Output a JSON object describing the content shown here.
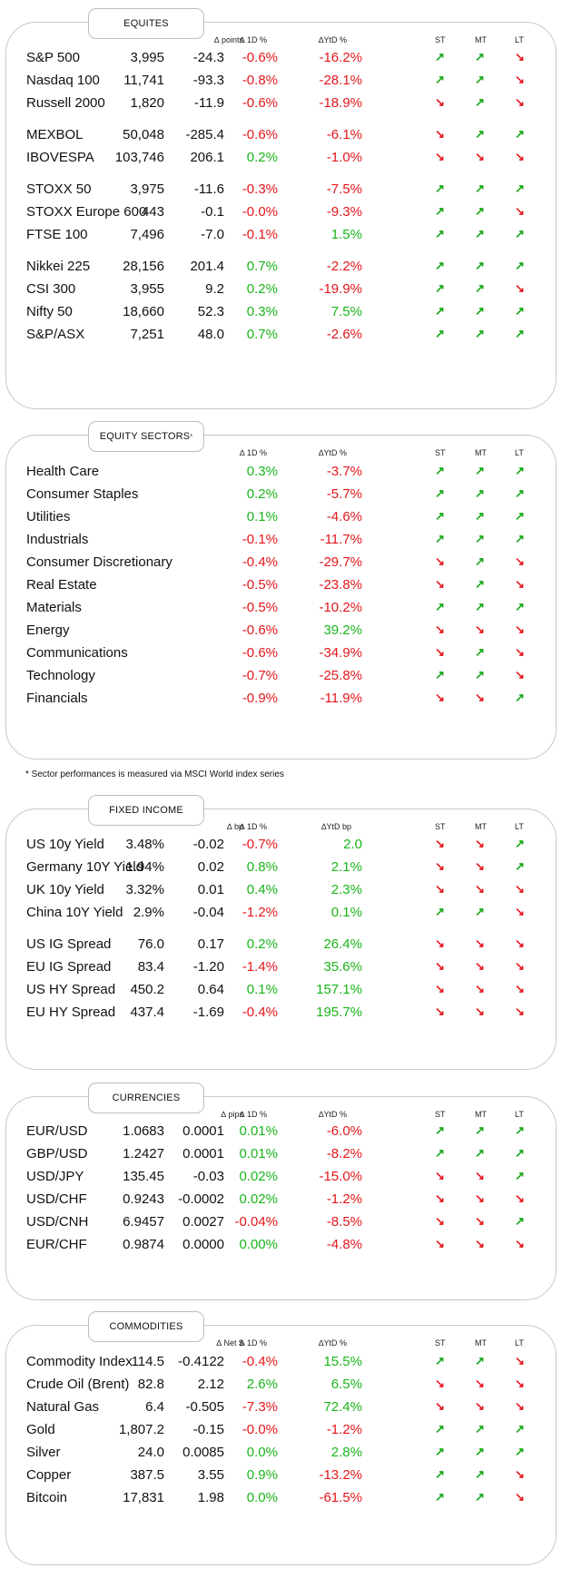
{
  "colors": {
    "positive": "#1ab51a",
    "negative": "#e3171b"
  },
  "icons": {
    "up": "↗",
    "down": "↘"
  },
  "equities": {
    "title": "EQUITES",
    "headers": {
      "c1": "∆ points",
      "c2": "∆ 1D %",
      "c3": "∆YtD %",
      "st": "ST",
      "mt": "MT",
      "lt": "LT"
    },
    "rows": [
      {
        "name": "S&P 500",
        "value": "3,995",
        "change": "-24.3",
        "d1": "-0.6%",
        "ytd": "-16.2%",
        "st": "up",
        "mt": "up",
        "lt": "down"
      },
      {
        "name": "Nasdaq 100",
        "value": "11,741",
        "change": "-93.3",
        "d1": "-0.8%",
        "ytd": "-28.1%",
        "st": "up",
        "mt": "up",
        "lt": "down"
      },
      {
        "name": "Russell 2000",
        "value": "1,820",
        "change": "-11.9",
        "d1": "-0.6%",
        "ytd": "-18.9%",
        "st": "down",
        "mt": "up",
        "lt": "down"
      },
      {
        "name": "MEXBOL",
        "value": "50,048",
        "change": "-285.4",
        "d1": "-0.6%",
        "ytd": "-6.1%",
        "st": "down",
        "mt": "up",
        "lt": "up"
      },
      {
        "name": "IBOVESPA",
        "value": "103,746",
        "change": "206.1",
        "d1": "0.2%",
        "ytd": "-1.0%",
        "st": "down",
        "mt": "down",
        "lt": "down"
      },
      {
        "name": "STOXX 50",
        "value": "3,975",
        "change": "-11.6",
        "d1": "-0.3%",
        "ytd": "-7.5%",
        "st": "up",
        "mt": "up",
        "lt": "up"
      },
      {
        "name": "STOXX Europe 600",
        "value": "443",
        "change": "-0.1",
        "d1": "-0.0%",
        "ytd": "-9.3%",
        "st": "up",
        "mt": "up",
        "lt": "down"
      },
      {
        "name": "FTSE 100",
        "value": "7,496",
        "change": "-7.0",
        "d1": "-0.1%",
        "ytd": "1.5%",
        "st": "up",
        "mt": "up",
        "lt": "up"
      },
      {
        "name": "Nikkei 225",
        "value": "28,156",
        "change": "201.4",
        "d1": "0.7%",
        "ytd": "-2.2%",
        "st": "up",
        "mt": "up",
        "lt": "up"
      },
      {
        "name": "CSI 300",
        "value": "3,955",
        "change": "9.2",
        "d1": "0.2%",
        "ytd": "-19.9%",
        "st": "up",
        "mt": "up",
        "lt": "down"
      },
      {
        "name": "Nifty  50",
        "value": "18,660",
        "change": "52.3",
        "d1": "0.3%",
        "ytd": "7.5%",
        "st": "up",
        "mt": "up",
        "lt": "up"
      },
      {
        "name": "S&P/ASX",
        "value": "7,251",
        "change": "48.0",
        "d1": "0.7%",
        "ytd": "-2.6%",
        "st": "up",
        "mt": "up",
        "lt": "up"
      }
    ]
  },
  "sectors": {
    "title": "EQUITY SECTORS",
    "title_sup": "*",
    "headers": {
      "c2": "∆ 1D %",
      "c3": "∆YtD %",
      "st": "ST",
      "mt": "MT",
      "lt": "LT"
    },
    "rows": [
      {
        "name": "Health Care",
        "d1": "0.3%",
        "ytd": "-3.7%",
        "st": "up",
        "mt": "up",
        "lt": "up"
      },
      {
        "name": "Consumer Staples",
        "d1": "0.2%",
        "ytd": "-5.7%",
        "st": "up",
        "mt": "up",
        "lt": "up"
      },
      {
        "name": "Utilities",
        "d1": "0.1%",
        "ytd": "-4.6%",
        "st": "up",
        "mt": "up",
        "lt": "up"
      },
      {
        "name": "Industrials",
        "d1": "-0.1%",
        "ytd": "-11.7%",
        "st": "up",
        "mt": "up",
        "lt": "up"
      },
      {
        "name": "Consumer Discretionary",
        "d1": "-0.4%",
        "ytd": "-29.7%",
        "st": "down",
        "mt": "up",
        "lt": "down"
      },
      {
        "name": "Real Estate",
        "d1": "-0.5%",
        "ytd": "-23.8%",
        "st": "down",
        "mt": "up",
        "lt": "down"
      },
      {
        "name": "Materials",
        "d1": "-0.5%",
        "ytd": "-10.2%",
        "st": "up",
        "mt": "up",
        "lt": "up"
      },
      {
        "name": "Energy",
        "d1": "-0.6%",
        "ytd": "39.2%",
        "st": "down",
        "mt": "down",
        "lt": "down"
      },
      {
        "name": "Communications",
        "d1": "-0.6%",
        "ytd": "-34.9%",
        "st": "down",
        "mt": "up",
        "lt": "down"
      },
      {
        "name": "Technology",
        "d1": "-0.7%",
        "ytd": "-25.8%",
        "st": "up",
        "mt": "up",
        "lt": "down"
      },
      {
        "name": "Financials",
        "d1": "-0.9%",
        "ytd": "-11.9%",
        "st": "down",
        "mt": "down",
        "lt": "up"
      }
    ],
    "footnote": "* Sector performances is measured via MSCI World index series"
  },
  "fixed_income": {
    "title": "FIXED INCOME",
    "headers": {
      "c1": "∆ bp",
      "c2": "∆ 1D %",
      "c3": "∆YtD bp",
      "st": "ST",
      "mt": "MT",
      "lt": "LT"
    },
    "rows": [
      {
        "name": "US 10y Yield",
        "value": "3.48%",
        "change": "-0.02",
        "d1": "-0.7%",
        "ytd": "2.0",
        "st": "down",
        "mt": "down",
        "lt": "up"
      },
      {
        "name": "Germany 10Y Yield",
        "value": "1.94%",
        "change": "0.02",
        "d1": "0.8%",
        "ytd": "2.1%",
        "st": "down",
        "mt": "down",
        "lt": "up"
      },
      {
        "name": "UK 10y Yield",
        "value": "3.32%",
        "change": "0.01",
        "d1": "0.4%",
        "ytd": "2.3%",
        "st": "down",
        "mt": "down",
        "lt": "down"
      },
      {
        "name": "China 10Y Yield",
        "value": "2.9%",
        "change": "-0.04",
        "d1": "-1.2%",
        "ytd": "0.1%",
        "st": "up",
        "mt": "up",
        "lt": "down"
      },
      {
        "name": "US IG Spread",
        "value": "76.0",
        "change": "0.17",
        "d1": "0.2%",
        "ytd": "26.4%",
        "st": "down",
        "mt": "down",
        "lt": "down"
      },
      {
        "name": "EU IG Spread",
        "value": "83.4",
        "change": "-1.20",
        "d1": "-1.4%",
        "ytd": "35.6%",
        "st": "down",
        "mt": "down",
        "lt": "down"
      },
      {
        "name": "US HY Spread",
        "value": "450.2",
        "change": "0.64",
        "d1": "0.1%",
        "ytd": "157.1%",
        "st": "down",
        "mt": "down",
        "lt": "down"
      },
      {
        "name": "EU HY Spread",
        "value": "437.4",
        "change": "-1.69",
        "d1": "-0.4%",
        "ytd": "195.7%",
        "st": "down",
        "mt": "down",
        "lt": "down"
      }
    ]
  },
  "currencies": {
    "title": "CURRENCIES",
    "headers": {
      "c1": "∆ pips",
      "c2": "∆ 1D %",
      "c3": "∆YtD %",
      "st": "ST",
      "mt": "MT",
      "lt": "LT"
    },
    "rows": [
      {
        "name": "EUR/USD",
        "value": "1.0683",
        "change": "0.0001",
        "d1": "0.01%",
        "ytd": "-6.0%",
        "st": "up",
        "mt": "up",
        "lt": "up"
      },
      {
        "name": "GBP/USD",
        "value": "1.2427",
        "change": "0.0001",
        "d1": "0.01%",
        "ytd": "-8.2%",
        "st": "up",
        "mt": "up",
        "lt": "up"
      },
      {
        "name": "USD/JPY",
        "value": "135.45",
        "change": "-0.03",
        "d1": "0.02%",
        "ytd": "-15.0%",
        "st": "down",
        "mt": "down",
        "lt": "up"
      },
      {
        "name": "USD/CHF",
        "value": "0.9243",
        "change": "-0.0002",
        "d1": "0.02%",
        "ytd": "-1.2%",
        "st": "down",
        "mt": "down",
        "lt": "down"
      },
      {
        "name": "USD/CNH",
        "value": "6.9457",
        "change": "0.0027",
        "d1": "-0.04%",
        "ytd": "-8.5%",
        "st": "down",
        "mt": "down",
        "lt": "up"
      },
      {
        "name": "EUR/CHF",
        "value": "0.9874",
        "change": "0.0000",
        "d1": "0.00%",
        "ytd": "-4.8%",
        "st": "down",
        "mt": "down",
        "lt": "down"
      }
    ]
  },
  "commodities": {
    "title": "COMMODITIES",
    "headers": {
      "c1": "∆ Net $",
      "c2": "∆ 1D %",
      "c3": "∆YtD %",
      "st": "ST",
      "mt": "MT",
      "lt": "LT"
    },
    "rows": [
      {
        "name": "Commodity Index",
        "value": "114.5",
        "change": "-0.4122",
        "d1": "-0.4%",
        "ytd": "15.5%",
        "st": "up",
        "mt": "up",
        "lt": "down"
      },
      {
        "name": "Crude Oil (Brent)",
        "value": "82.8",
        "change": "2.12",
        "d1": "2.6%",
        "ytd": "6.5%",
        "st": "down",
        "mt": "down",
        "lt": "down"
      },
      {
        "name": "Natural Gas",
        "value": "6.4",
        "change": "-0.505",
        "d1": "-7.3%",
        "ytd": "72.4%",
        "st": "down",
        "mt": "down",
        "lt": "down"
      },
      {
        "name": "Gold",
        "value": "1,807.2",
        "change": "-0.15",
        "d1": "-0.0%",
        "ytd": "-1.2%",
        "st": "up",
        "mt": "up",
        "lt": "up"
      },
      {
        "name": "Silver",
        "value": "24.0",
        "change": "0.0085",
        "d1": "0.0%",
        "ytd": "2.8%",
        "st": "up",
        "mt": "up",
        "lt": "up"
      },
      {
        "name": "Copper",
        "value": "387.5",
        "change": "3.55",
        "d1": "0.9%",
        "ytd": "-13.2%",
        "st": "up",
        "mt": "up",
        "lt": "down"
      },
      {
        "name": "Bitcoin",
        "value": "17,831",
        "change": "1.98",
        "d1": "0.0%",
        "ytd": "-61.5%",
        "st": "up",
        "mt": "up",
        "lt": "down"
      }
    ]
  }
}
